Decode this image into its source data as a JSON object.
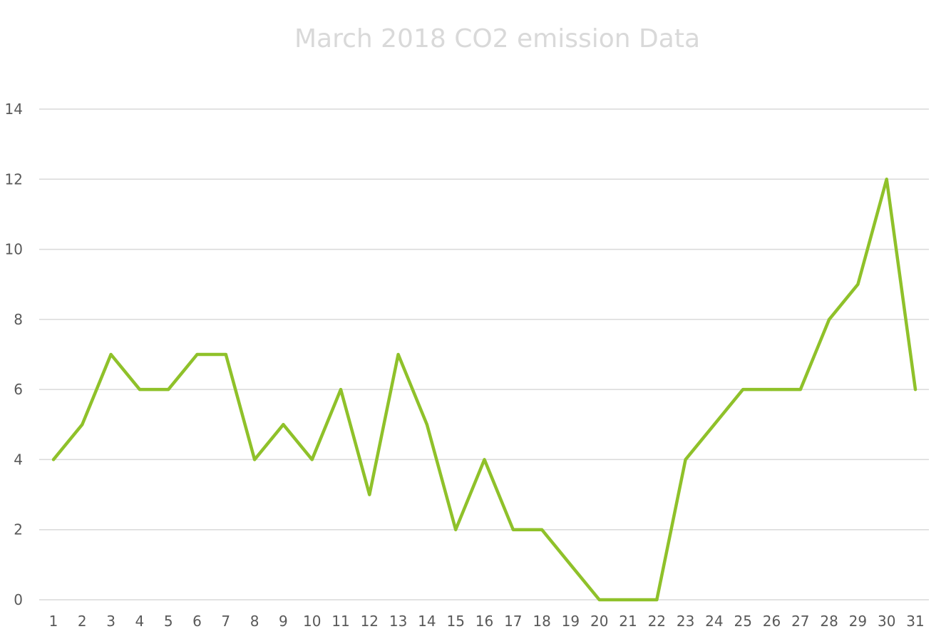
{
  "chart_data": {
    "type": "line",
    "title": "March 2018 CO2 emission Data",
    "xlabel": "",
    "ylabel": "",
    "categories": [
      "1",
      "2",
      "3",
      "4",
      "5",
      "6",
      "7",
      "8",
      "9",
      "10",
      "11",
      "12",
      "13",
      "14",
      "15",
      "16",
      "17",
      "18",
      "19",
      "20",
      "21",
      "22",
      "23",
      "24",
      "25",
      "26",
      "27",
      "28",
      "29",
      "30",
      "31"
    ],
    "series": [
      {
        "values": [
          4,
          5,
          7,
          6,
          6,
          7,
          7,
          4,
          5,
          4,
          6,
          3,
          7,
          5,
          2,
          4,
          2,
          2,
          1,
          0,
          0,
          0,
          4,
          5,
          6,
          6,
          6,
          8,
          9,
          12,
          6
        ]
      }
    ],
    "ylim": [
      0,
      14
    ],
    "yticks": [
      0,
      2,
      4,
      6,
      8,
      10,
      12,
      14
    ],
    "grid": "horizontal",
    "legend": "none",
    "colors": {
      "line": "#8fc12a",
      "grid": "#d9d9d9",
      "title": "#d9d9d9",
      "tick_text": "#595959"
    }
  }
}
